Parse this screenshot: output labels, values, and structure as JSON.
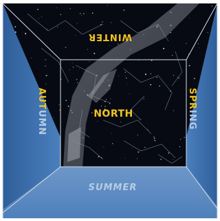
{
  "labels": {
    "center": "NORTH",
    "top": "WINTER",
    "bottom": "SUMMER",
    "left_gold": "AUT",
    "left_pale": "UMN",
    "right_gold": "SPR",
    "right_pale": "ING"
  },
  "colors": {
    "sky": "#070a12",
    "wall_blue": "#3f73b2",
    "wall_blue_dark": "#2f5f9a",
    "floor_blue": "#5a88c0",
    "gold": "#f2c322",
    "pale": "#b7cce6",
    "edge_line": "#d7dde8",
    "constellation_line": "#8a97ad",
    "milky_way": "#9a9ea8",
    "frame": "#000000"
  }
}
